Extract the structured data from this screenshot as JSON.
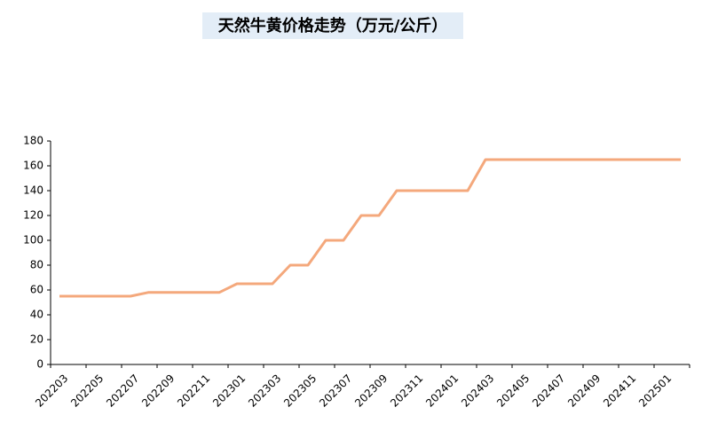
{
  "chart_data": {
    "type": "line",
    "title": "天然牛黄价格走势（万元/公斤）",
    "categories": [
      "202203",
      null,
      "202205",
      null,
      "202207",
      null,
      "202209",
      null,
      "202211",
      null,
      "202301",
      null,
      "202303",
      null,
      "202305",
      null,
      "202307",
      null,
      "202309",
      null,
      "202311",
      null,
      "202401",
      null,
      "202403",
      null,
      "202405",
      null,
      "202407",
      null,
      "202409",
      null,
      "202411",
      null,
      "202501",
      null
    ],
    "series": [
      {
        "name": "天然牛黄价格",
        "color": "#f4a87c",
        "values": [
          55,
          55,
          55,
          55,
          55,
          58,
          58,
          58,
          58,
          58,
          65,
          65,
          65,
          80,
          80,
          100,
          100,
          120,
          120,
          140,
          140,
          140,
          140,
          140,
          165,
          165,
          165,
          165,
          165,
          165,
          165,
          165,
          165,
          165,
          165,
          165
        ]
      }
    ],
    "ylim": [
      0,
      180
    ],
    "yticks": [
      0,
      20,
      40,
      60,
      80,
      100,
      120,
      140,
      160,
      180
    ],
    "grid": false
  }
}
